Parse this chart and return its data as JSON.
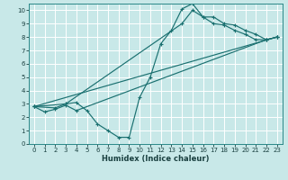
{
  "xlabel": "Humidex (Indice chaleur)",
  "bg_color": "#c8e8e8",
  "line_color": "#1a7070",
  "grid_color": "#e0f0f0",
  "xlim": [
    -0.5,
    23.5
  ],
  "ylim": [
    0,
    10.5
  ],
  "yticks": [
    0,
    1,
    2,
    3,
    4,
    5,
    6,
    7,
    8,
    9,
    10
  ],
  "xticks": [
    0,
    1,
    2,
    3,
    4,
    5,
    6,
    7,
    8,
    9,
    10,
    11,
    12,
    13,
    14,
    15,
    16,
    17,
    18,
    19,
    20,
    21,
    22,
    23
  ],
  "line1_x": [
    0,
    2,
    3,
    4,
    5,
    6,
    7,
    8,
    9,
    10,
    11,
    12,
    13,
    14,
    15,
    16,
    17,
    18,
    19,
    20,
    21,
    22,
    23
  ],
  "line1_y": [
    2.8,
    2.7,
    3.0,
    3.1,
    2.5,
    1.5,
    1.0,
    0.5,
    0.5,
    3.5,
    5.0,
    7.5,
    8.5,
    10.1,
    10.5,
    9.5,
    9.5,
    9.0,
    8.9,
    8.5,
    8.2,
    7.8,
    8.0
  ],
  "line2_x": [
    0,
    23
  ],
  "line2_y": [
    2.8,
    8.0
  ],
  "line3_x": [
    0,
    1,
    2,
    3,
    4,
    22,
    23
  ],
  "line3_y": [
    2.8,
    2.4,
    2.6,
    2.9,
    2.5,
    7.8,
    8.0
  ],
  "line4_x": [
    0,
    3,
    14,
    15,
    16,
    17,
    18,
    19,
    20,
    21,
    22,
    23
  ],
  "line4_y": [
    2.8,
    3.0,
    9.0,
    10.0,
    9.5,
    9.0,
    8.9,
    8.5,
    8.2,
    7.8,
    7.8,
    8.0
  ]
}
